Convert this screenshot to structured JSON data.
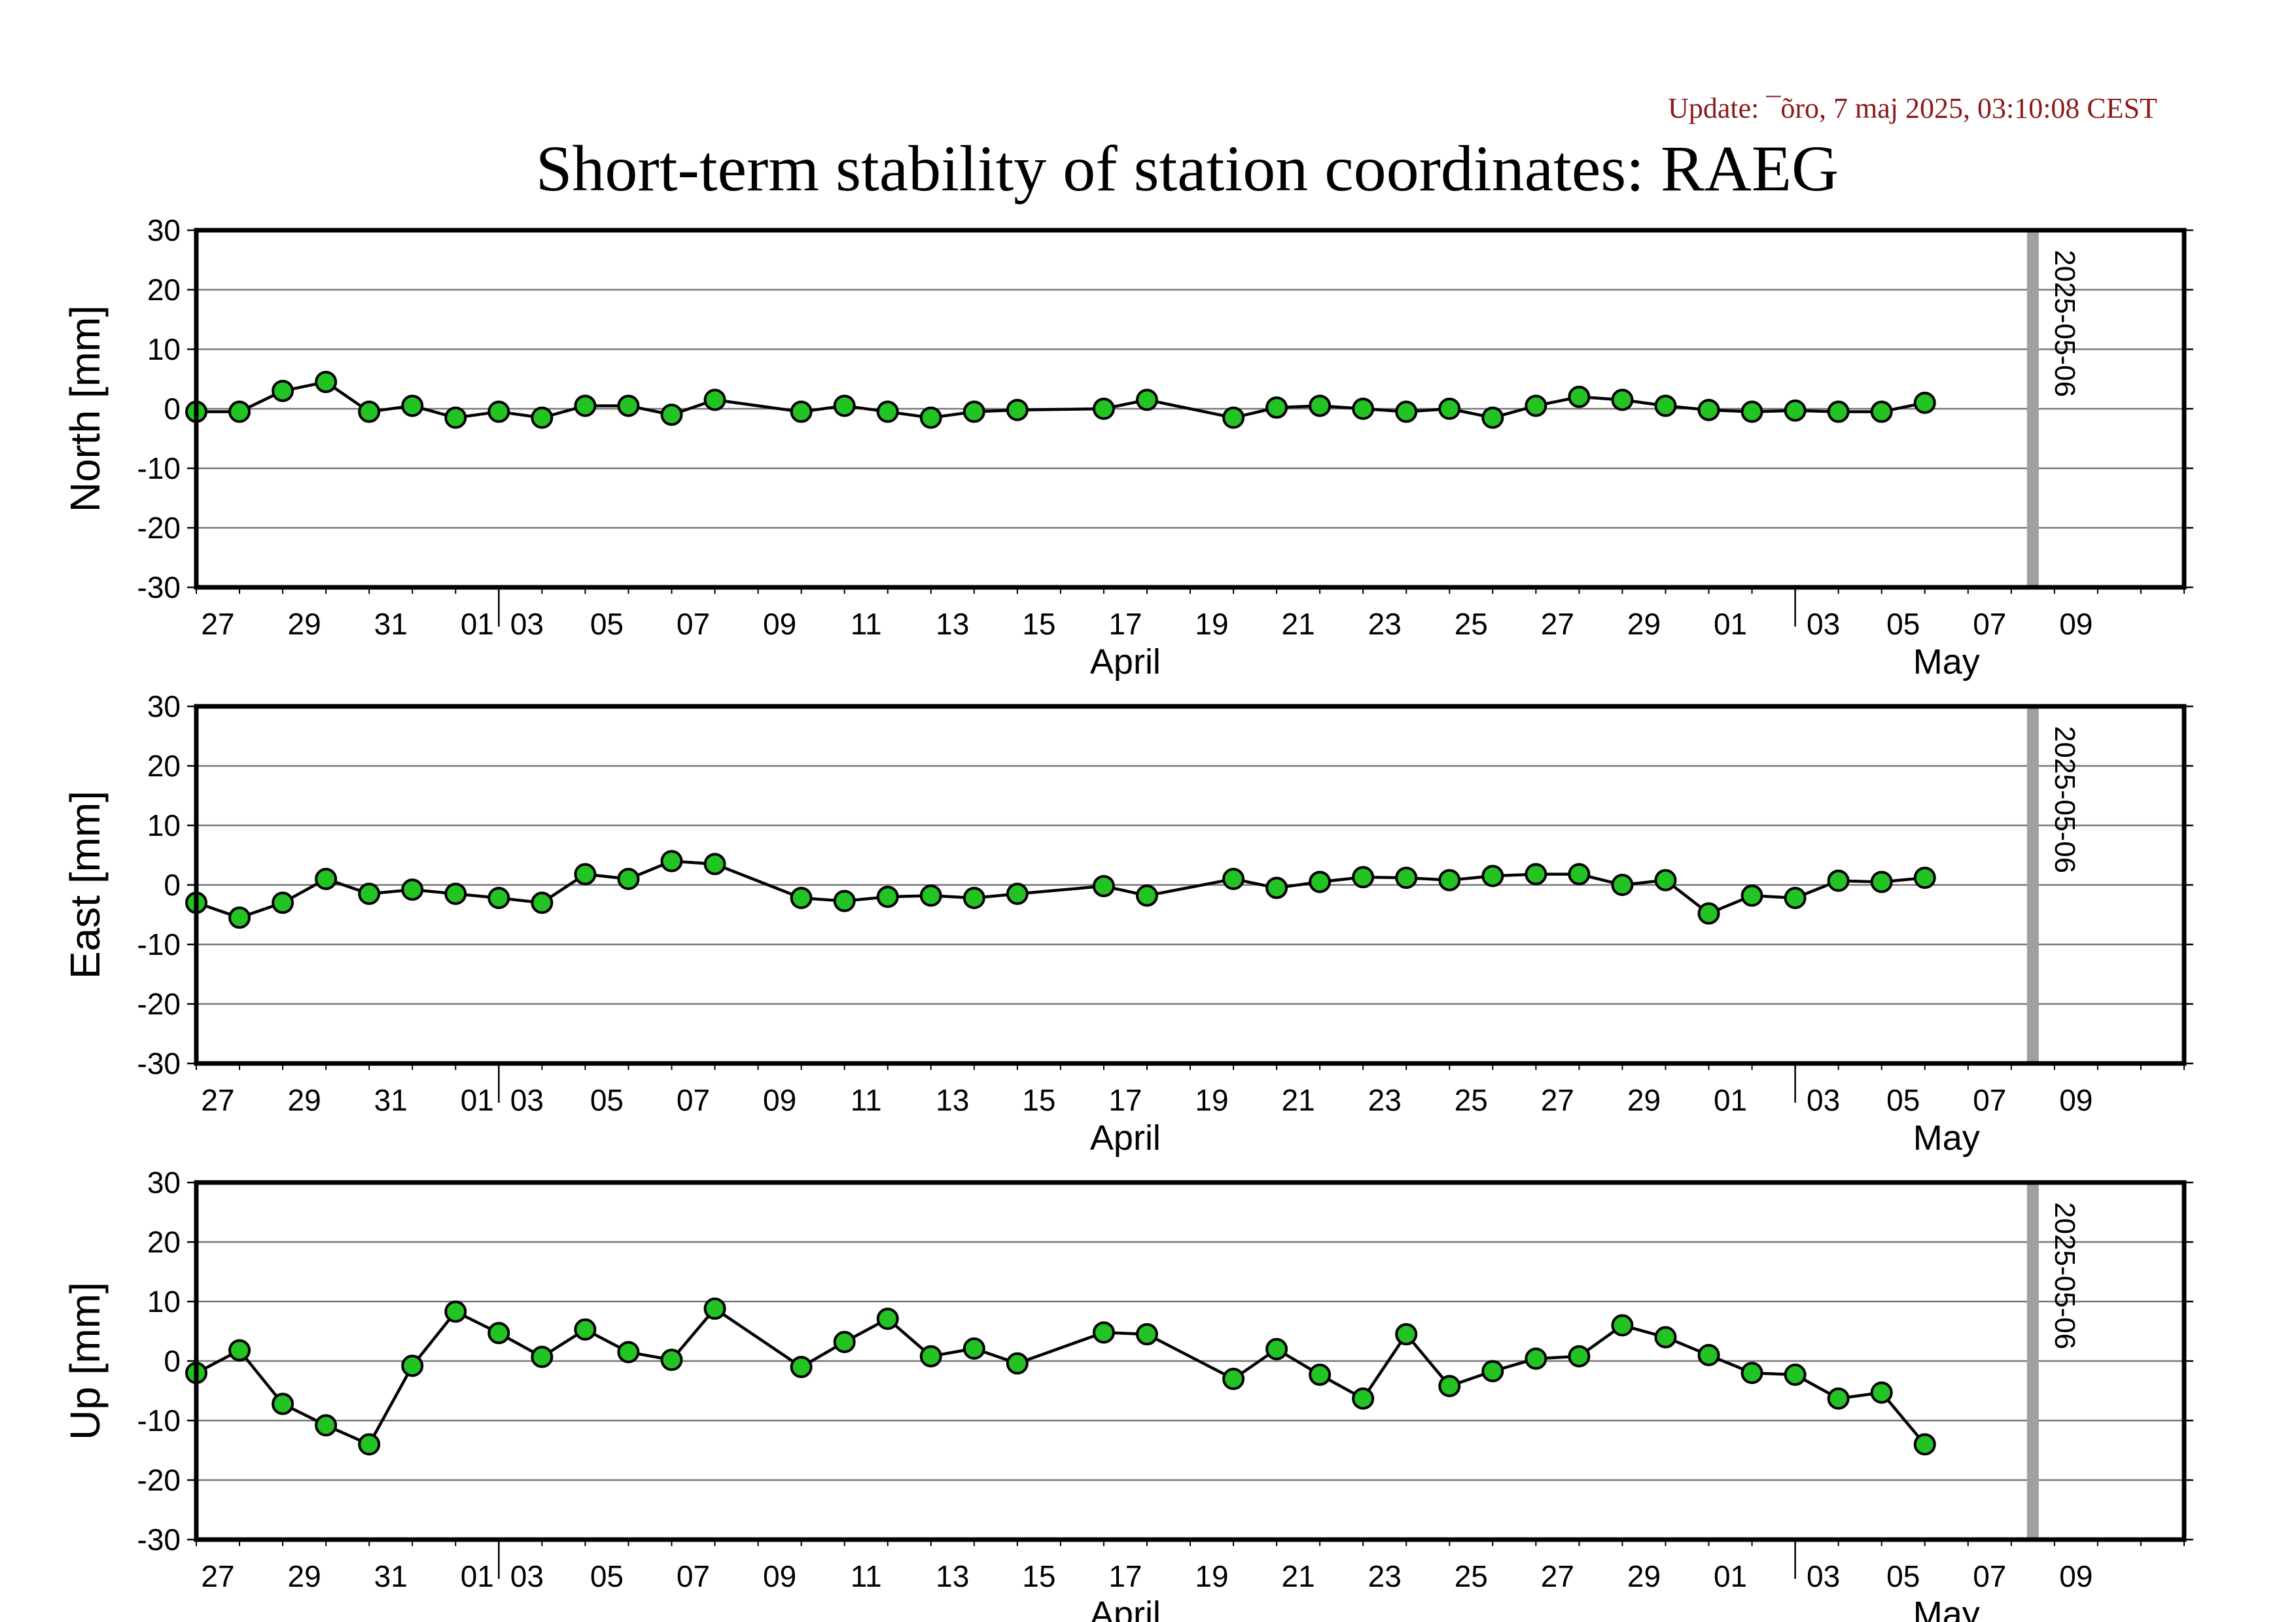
{
  "update_text": "Update: ¯õro, 7 maj 2025, 03:10:08 CEST",
  "title": "Short-term stability of station coordinates: RAEG",
  "colors": {
    "marker_fill": "#22c322",
    "marker_stroke": "#000000",
    "line": "#000000",
    "grid": "#777777",
    "current_day_bar": "#a0a0a0"
  },
  "chart_data": [
    {
      "type": "line",
      "ylabel": "North [mm]",
      "ylim": [
        -30,
        30
      ],
      "yticks": [
        30,
        20,
        10,
        0,
        -10,
        -20,
        -30
      ],
      "grid": true,
      "xlim": [
        "2025-03-25",
        "2025-05-10"
      ],
      "x_tick_labels": [
        "27",
        "29",
        "31",
        "01",
        "03",
        "05",
        "07",
        "09",
        "11",
        "13",
        "15",
        "17",
        "19",
        "21",
        "23",
        "25",
        "27",
        "29",
        "01",
        "03",
        "05",
        "07",
        "09"
      ],
      "month_labels": [
        "April",
        "May"
      ],
      "marker_date": "2025-05-06",
      "marker_label": "2025-05-06",
      "series": [
        {
          "x": [
            "2025-03-25",
            "2025-03-26",
            "2025-03-27",
            "2025-03-28",
            "2025-03-29",
            "2025-03-30",
            "2025-03-31",
            "2025-04-01",
            "2025-04-02",
            "2025-04-03",
            "2025-04-04",
            "2025-04-05",
            "2025-04-06",
            "2025-04-08",
            "2025-04-09",
            "2025-04-10",
            "2025-04-11",
            "2025-04-12",
            "2025-04-13",
            "2025-04-15",
            "2025-04-16",
            "2025-04-18",
            "2025-04-19",
            "2025-04-20",
            "2025-04-21",
            "2025-04-22",
            "2025-04-23",
            "2025-04-24",
            "2025-04-25",
            "2025-04-26",
            "2025-04-27",
            "2025-04-28",
            "2025-04-29",
            "2025-04-30",
            "2025-05-01",
            "2025-05-02",
            "2025-05-03",
            "2025-05-04"
          ],
          "y": [
            -0.5,
            -0.5,
            3,
            4.5,
            -0.5,
            0.5,
            -1.5,
            -0.5,
            -1.5,
            0.5,
            0.5,
            -1,
            1.5,
            -0.5,
            0.5,
            -0.5,
            -1.5,
            -0.5,
            -0.2,
            0,
            1.5,
            -1.5,
            0.2,
            0.5,
            0,
            -0.5,
            0,
            -1.5,
            0.5,
            2,
            1.5,
            0.5,
            -0.2,
            -0.5,
            -0.3,
            -0.5,
            -0.5,
            1
          ]
        }
      ]
    },
    {
      "type": "line",
      "ylabel": "East [mm]",
      "ylim": [
        -30,
        30
      ],
      "yticks": [
        30,
        20,
        10,
        0,
        -10,
        -20,
        -30
      ],
      "grid": true,
      "xlim": [
        "2025-03-25",
        "2025-05-10"
      ],
      "x_tick_labels": [
        "27",
        "29",
        "31",
        "01",
        "03",
        "05",
        "07",
        "09",
        "11",
        "13",
        "15",
        "17",
        "19",
        "21",
        "23",
        "25",
        "27",
        "29",
        "01",
        "03",
        "05",
        "07",
        "09"
      ],
      "month_labels": [
        "April",
        "May"
      ],
      "marker_date": "2025-05-06",
      "marker_label": "2025-05-06",
      "series": [
        {
          "x": [
            "2025-03-25",
            "2025-03-26",
            "2025-03-27",
            "2025-03-28",
            "2025-03-29",
            "2025-03-30",
            "2025-03-31",
            "2025-04-01",
            "2025-04-02",
            "2025-04-03",
            "2025-04-04",
            "2025-04-05",
            "2025-04-06",
            "2025-04-08",
            "2025-04-09",
            "2025-04-10",
            "2025-04-11",
            "2025-04-12",
            "2025-04-13",
            "2025-04-15",
            "2025-04-16",
            "2025-04-18",
            "2025-04-19",
            "2025-04-20",
            "2025-04-21",
            "2025-04-22",
            "2025-04-23",
            "2025-04-24",
            "2025-04-25",
            "2025-04-26",
            "2025-04-27",
            "2025-04-28",
            "2025-04-29",
            "2025-04-30",
            "2025-05-01",
            "2025-05-02",
            "2025-05-03",
            "2025-05-04"
          ],
          "y": [
            -3,
            -5.5,
            -3,
            1,
            -1.5,
            -0.8,
            -1.5,
            -2.2,
            -3,
            1.8,
            1,
            4,
            3.5,
            -2.2,
            -2.7,
            -2,
            -1.8,
            -2.2,
            -1.5,
            -0.2,
            -1.8,
            1,
            -0.5,
            0.5,
            1.3,
            1.2,
            0.8,
            1.5,
            1.8,
            1.8,
            0,
            0.8,
            -4.8,
            -1.8,
            -2.2,
            0.7,
            0.5,
            1.2
          ]
        }
      ]
    },
    {
      "type": "line",
      "ylabel": "Up [mm]",
      "ylim": [
        -30,
        30
      ],
      "yticks": [
        30,
        20,
        10,
        0,
        -10,
        -20,
        -30
      ],
      "grid": true,
      "xlim": [
        "2025-03-25",
        "2025-05-10"
      ],
      "x_tick_labels": [
        "27",
        "29",
        "31",
        "01",
        "03",
        "05",
        "07",
        "09",
        "11",
        "13",
        "15",
        "17",
        "19",
        "21",
        "23",
        "25",
        "27",
        "29",
        "01",
        "03",
        "05",
        "07",
        "09"
      ],
      "month_labels": [
        "April",
        "May"
      ],
      "marker_date": "2025-05-06",
      "marker_label": "2025-05-06",
      "series": [
        {
          "x": [
            "2025-03-25",
            "2025-03-26",
            "2025-03-27",
            "2025-03-28",
            "2025-03-29",
            "2025-03-30",
            "2025-03-31",
            "2025-04-01",
            "2025-04-02",
            "2025-04-03",
            "2025-04-04",
            "2025-04-05",
            "2025-04-06",
            "2025-04-08",
            "2025-04-09",
            "2025-04-10",
            "2025-04-11",
            "2025-04-12",
            "2025-04-13",
            "2025-04-15",
            "2025-04-16",
            "2025-04-18",
            "2025-04-19",
            "2025-04-20",
            "2025-04-21",
            "2025-04-22",
            "2025-04-23",
            "2025-04-24",
            "2025-04-25",
            "2025-04-26",
            "2025-04-27",
            "2025-04-28",
            "2025-04-29",
            "2025-04-30",
            "2025-05-01",
            "2025-05-02",
            "2025-05-03",
            "2025-05-04"
          ],
          "y": [
            -2,
            1.8,
            -7.2,
            -10.8,
            -14,
            -0.8,
            8.3,
            4.7,
            0.7,
            5.3,
            1.5,
            0.2,
            8.8,
            -1,
            3.2,
            7.1,
            0.8,
            2.1,
            -0.4,
            4.8,
            4.5,
            -3,
            2,
            -2.3,
            -6.3,
            4.5,
            -4.2,
            -1.7,
            0.4,
            0.8,
            6,
            4,
            1,
            -2,
            -2.3,
            -6.3,
            -5.3,
            -14
          ]
        }
      ]
    }
  ]
}
